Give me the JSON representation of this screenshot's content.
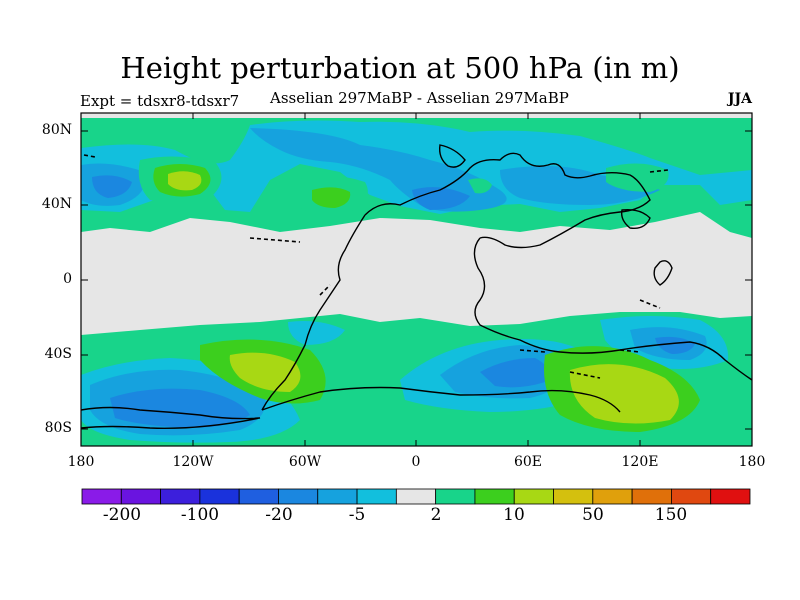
{
  "title": "Height perturbation at 500 hPa (in m)",
  "experiment": "Expt = tdsxr8-tdsxr7",
  "subtitle": "Asselian 297MaBP - Asselian 297MaBP",
  "season": "JJA",
  "lat_labels": [
    "80N",
    "40N",
    "0",
    "40S",
    "80S"
  ],
  "lon_labels": [
    "180",
    "120W",
    "60W",
    "0",
    "60E",
    "120E",
    "180"
  ],
  "colorbar": {
    "labels": [
      "-200",
      "-100",
      "-20",
      "-5",
      "2",
      "10",
      "50",
      "150"
    ],
    "colors": [
      "#8a1be8",
      "#6a14e0",
      "#3c1fdc",
      "#1a32dc",
      "#1f5fe0",
      "#1b87e0",
      "#16a2de",
      "#12bfdd",
      "#e6e6e6",
      "#18d48a",
      "#3ccf1e",
      "#a8d814",
      "#d4c00e",
      "#e0a00c",
      "#e0700a",
      "#e04810",
      "#e01010"
    ]
  },
  "colors": {
    "background": "#e6e6e6",
    "blue_light": "#12bfdd",
    "blue_mid": "#16a2de",
    "blue_dark": "#1b87e0",
    "green_teal": "#18d48a",
    "green": "#3ccf1e",
    "yellow_green": "#a8d814"
  }
}
